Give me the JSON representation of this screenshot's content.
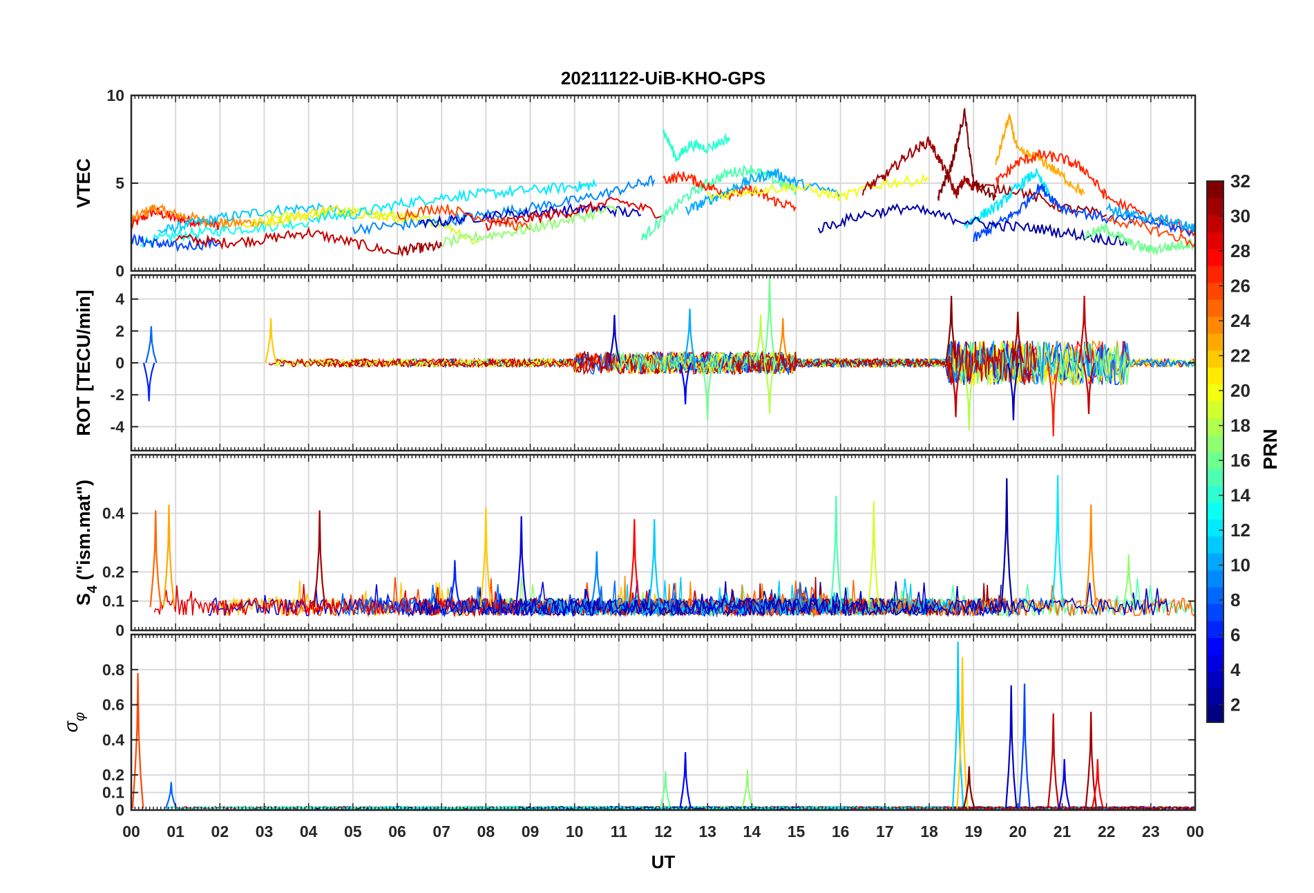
{
  "figure": {
    "title": "20211122-UiB-KHO-GPS",
    "xlabel": "UT"
  },
  "chart_data": [
    {
      "type": "line",
      "panel": "VTEC",
      "ylabel": "VTEC",
      "ylim": [
        0,
        10
      ],
      "yticks": [
        0,
        5,
        10
      ],
      "xlim": [
        0,
        24
      ],
      "grid": true,
      "series_note_visible": "multiple PRN traces colour-coded by PRN",
      "segments": [
        {
          "prn": 28,
          "x": [
            0.0,
            0.5,
            1.0,
            1.5,
            2.0
          ],
          "y": [
            2.6,
            3.4,
            3.0,
            2.8,
            2.6
          ]
        },
        {
          "prn": 24,
          "x": [
            0.0,
            0.5,
            1.0,
            1.6,
            2.2,
            3.0
          ],
          "y": [
            2.9,
            3.6,
            3.2,
            2.9,
            2.7,
            2.8
          ]
        },
        {
          "prn": 11,
          "x": [
            0.6,
            1.2,
            2.0,
            3.0,
            4.0,
            5.0
          ],
          "y": [
            2.2,
            2.6,
            3.0,
            3.4,
            3.6,
            3.3
          ]
        },
        {
          "prn": 13,
          "x": [
            0.2,
            1.0,
            2.0,
            3.0,
            4.0
          ],
          "y": [
            1.6,
            2.0,
            2.3,
            2.5,
            2.8
          ]
        },
        {
          "prn": 7,
          "x": [
            0.0,
            0.5,
            1.0,
            2.0
          ],
          "y": [
            1.8,
            1.6,
            1.4,
            1.6
          ]
        },
        {
          "prn": 30,
          "x": [
            1.0,
            2.0,
            3.0,
            4.0,
            5.0,
            6.0
          ],
          "y": [
            1.9,
            1.6,
            1.8,
            2.2,
            1.6,
            1.0
          ]
        },
        {
          "prn": 31,
          "x": [
            6.0,
            6.5,
            7.0
          ],
          "y": [
            1.1,
            1.3,
            1.4
          ]
        },
        {
          "prn": 19,
          "x": [
            3.0,
            4.0,
            5.0,
            6.0,
            7.0,
            7.8
          ],
          "y": [
            3.0,
            3.2,
            3.4,
            3.1,
            2.8,
            1.6
          ]
        },
        {
          "prn": 21,
          "x": [
            2.5,
            3.5,
            4.5,
            5.5,
            6.5
          ],
          "y": [
            2.6,
            3.0,
            3.5,
            3.2,
            2.9
          ]
        },
        {
          "prn": 12,
          "x": [
            4.0,
            5.0,
            6.0,
            7.0,
            8.0,
            9.0,
            10.0,
            10.5
          ],
          "y": [
            3.0,
            3.2,
            3.8,
            4.2,
            4.4,
            4.6,
            4.8,
            4.9
          ]
        },
        {
          "prn": 9,
          "x": [
            5.0,
            6.0,
            7.0,
            8.0,
            9.0,
            10.0,
            11.0,
            11.8
          ],
          "y": [
            2.4,
            2.6,
            2.8,
            3.2,
            3.6,
            4.0,
            4.6,
            5.2
          ]
        },
        {
          "prn": 3,
          "x": [
            6.5,
            7.5,
            8.5,
            9.5,
            10.5,
            11.5
          ],
          "y": [
            2.6,
            3.0,
            3.2,
            3.4,
            3.6,
            3.2
          ]
        },
        {
          "prn": 26,
          "x": [
            6.0,
            7.0,
            8.0,
            9.0
          ],
          "y": [
            3.2,
            3.6,
            3.0,
            2.4
          ]
        },
        {
          "prn": 17,
          "x": [
            7.0,
            8.0,
            9.0,
            10.0,
            11.0
          ],
          "y": [
            1.6,
            2.0,
            2.4,
            3.0,
            3.6
          ]
        },
        {
          "prn": 29,
          "x": [
            8.0,
            9.0,
            10.0,
            11.0,
            12.0
          ],
          "y": [
            2.6,
            3.0,
            3.4,
            4.0,
            3.2
          ]
        },
        {
          "prn": 14,
          "x": [
            12.0,
            12.3,
            12.6,
            13.0,
            13.5
          ],
          "y": [
            8.0,
            6.4,
            7.2,
            7.0,
            7.6
          ]
        },
        {
          "prn": 15,
          "x": [
            11.5,
            12.0,
            12.5,
            13.0,
            13.5,
            14.0,
            14.5,
            15.0
          ],
          "y": [
            1.8,
            3.0,
            4.2,
            5.0,
            5.6,
            5.8,
            5.2,
            4.6
          ]
        },
        {
          "prn": 27,
          "x": [
            12.0,
            12.5,
            13.0,
            13.5,
            14.0,
            14.5,
            15.0
          ],
          "y": [
            5.2,
            5.4,
            4.8,
            4.4,
            4.6,
            4.0,
            3.6
          ]
        },
        {
          "prn": 10,
          "x": [
            12.5,
            13.0,
            13.5,
            14.0,
            14.5,
            15.0,
            16.0
          ],
          "y": [
            3.4,
            4.0,
            4.6,
            5.2,
            5.6,
            5.0,
            4.4
          ]
        },
        {
          "prn": 20,
          "x": [
            13.0,
            14.0,
            15.0,
            16.0,
            17.0,
            18.0
          ],
          "y": [
            4.2,
            4.6,
            4.8,
            4.2,
            5.0,
            5.2
          ]
        },
        {
          "prn": 31,
          "x": [
            16.5,
            17.0,
            17.5,
            18.0,
            18.3,
            18.6,
            18.8,
            19.0,
            20.0,
            21.0,
            22.0
          ],
          "y": [
            4.6,
            5.4,
            6.6,
            7.4,
            6.0,
            4.4,
            5.2,
            4.8,
            4.6,
            3.6,
            3.2
          ]
        },
        {
          "prn": 32,
          "x": [
            18.2,
            18.5,
            18.8,
            19.0,
            19.5
          ],
          "y": [
            4.2,
            6.0,
            9.0,
            5.0,
            4.2
          ]
        },
        {
          "prn": 23,
          "x": [
            19.5,
            19.8,
            20.0,
            20.5,
            21.0,
            21.5
          ],
          "y": [
            6.0,
            8.8,
            6.8,
            6.4,
            5.4,
            4.4
          ]
        },
        {
          "prn": 27,
          "x": [
            19.5,
            20.0,
            20.5,
            21.0,
            21.5,
            22.0,
            23.0,
            24.0
          ],
          "y": [
            5.0,
            6.2,
            6.6,
            6.4,
            5.8,
            4.2,
            3.0,
            2.2
          ]
        },
        {
          "prn": 12,
          "x": [
            18.8,
            19.2,
            19.6,
            20.0,
            20.4,
            20.8
          ],
          "y": [
            2.6,
            3.2,
            3.8,
            4.8,
            5.6,
            4.0
          ]
        },
        {
          "prn": 7,
          "x": [
            19.0,
            19.5,
            20.0,
            20.5,
            21.0,
            22.0,
            23.0,
            24.0
          ],
          "y": [
            1.8,
            2.6,
            3.4,
            4.8,
            3.6,
            3.0,
            2.8,
            2.2
          ]
        },
        {
          "prn": 2,
          "x": [
            15.5,
            16.5,
            17.5,
            18.5,
            19.5,
            20.5,
            21.5,
            22.5
          ],
          "y": [
            2.4,
            3.2,
            3.6,
            3.0,
            2.6,
            2.4,
            2.0,
            1.6
          ]
        },
        {
          "prn": 16,
          "x": [
            21.5,
            22.0,
            22.5,
            23.0,
            23.5,
            24.0
          ],
          "y": [
            2.0,
            2.4,
            1.6,
            1.2,
            1.4,
            1.6
          ]
        },
        {
          "prn": 10,
          "x": [
            22.0,
            22.5,
            23.0,
            23.5,
            24.0
          ],
          "y": [
            3.6,
            3.2,
            3.0,
            2.8,
            2.4
          ]
        },
        {
          "prn": 26,
          "x": [
            22.0,
            23.0,
            24.0
          ],
          "y": [
            3.0,
            2.4,
            1.6
          ]
        }
      ]
    },
    {
      "type": "line",
      "panel": "ROT",
      "ylabel": "ROT [TECU/min]",
      "ylim": [
        -5.5,
        5.5
      ],
      "yticks": [
        -4,
        -2,
        0,
        2,
        4
      ],
      "xlim": [
        0,
        24
      ],
      "grid": true,
      "spikes": [
        {
          "prn": 6,
          "x": 0.4,
          "y": -2.4
        },
        {
          "prn": 8,
          "x": 0.45,
          "y": 2.3
        },
        {
          "prn": 22,
          "x": 3.15,
          "y": 2.8
        },
        {
          "prn": 3,
          "x": 10.9,
          "y": 3.0
        },
        {
          "prn": 5,
          "x": 12.5,
          "y": -2.6
        },
        {
          "prn": 10,
          "x": 12.6,
          "y": 3.4
        },
        {
          "prn": 16,
          "x": 13.0,
          "y": -3.6
        },
        {
          "prn": 18,
          "x": 14.2,
          "y": 3.0
        },
        {
          "prn": 16,
          "x": 14.4,
          "y": 5.4
        },
        {
          "prn": 18,
          "x": 14.4,
          "y": -3.2
        },
        {
          "prn": 24,
          "x": 14.7,
          "y": 2.8
        },
        {
          "prn": 32,
          "x": 18.5,
          "y": 4.2
        },
        {
          "prn": 30,
          "x": 18.6,
          "y": -3.4
        },
        {
          "prn": 18,
          "x": 18.9,
          "y": -4.2
        },
        {
          "prn": 3,
          "x": 19.9,
          "y": -3.6
        },
        {
          "prn": 31,
          "x": 20.0,
          "y": 3.2
        },
        {
          "prn": 27,
          "x": 20.8,
          "y": -4.6
        },
        {
          "prn": 30,
          "x": 21.5,
          "y": 4.2
        },
        {
          "prn": 30,
          "x": 21.6,
          "y": -3.2
        }
      ]
    },
    {
      "type": "line",
      "panel": "S4",
      "ylabel": "S",
      "ylabel_subscript": "4",
      "ylabel_suffix": " (\"ism.mat\")",
      "ylim": [
        0,
        0.6
      ],
      "yticks": [
        0,
        0.1,
        0.2,
        0.4
      ],
      "xlim": [
        0,
        24
      ],
      "grid": true,
      "spikes": [
        {
          "prn": 25,
          "x": 0.55,
          "y": 0.41
        },
        {
          "prn": 23,
          "x": 0.85,
          "y": 0.43
        },
        {
          "prn": 31,
          "x": 4.25,
          "y": 0.41
        },
        {
          "prn": 6,
          "x": 7.3,
          "y": 0.24
        },
        {
          "prn": 22,
          "x": 8.0,
          "y": 0.42
        },
        {
          "prn": 4,
          "x": 8.8,
          "y": 0.39
        },
        {
          "prn": 9,
          "x": 10.5,
          "y": 0.27
        },
        {
          "prn": 28,
          "x": 11.35,
          "y": 0.38
        },
        {
          "prn": 11,
          "x": 11.8,
          "y": 0.38
        },
        {
          "prn": 15,
          "x": 15.9,
          "y": 0.46
        },
        {
          "prn": 19,
          "x": 16.75,
          "y": 0.44
        },
        {
          "prn": 2,
          "x": 19.75,
          "y": 0.52
        },
        {
          "prn": 12,
          "x": 20.9,
          "y": 0.53
        },
        {
          "prn": 24,
          "x": 21.65,
          "y": 0.43
        },
        {
          "prn": 17,
          "x": 22.5,
          "y": 0.26
        }
      ]
    },
    {
      "type": "line",
      "panel": "sigma_phi",
      "ylabel": "σ",
      "ylabel_subscript": "φ",
      "ylim": [
        0,
        1
      ],
      "yticks": [
        0,
        0.1,
        0.2,
        0.4,
        0.6,
        0.8
      ],
      "xlim": [
        0,
        24
      ],
      "grid": true,
      "spikes": [
        {
          "prn": 26,
          "x": 0.15,
          "y": 0.78
        },
        {
          "prn": 8,
          "x": 0.9,
          "y": 0.16
        },
        {
          "prn": 16,
          "x": 12.05,
          "y": 0.22
        },
        {
          "prn": 5,
          "x": 12.5,
          "y": 0.33
        },
        {
          "prn": 17,
          "x": 13.9,
          "y": 0.23
        },
        {
          "prn": 11,
          "x": 18.65,
          "y": 0.96
        },
        {
          "prn": 22,
          "x": 18.75,
          "y": 0.87
        },
        {
          "prn": 32,
          "x": 18.9,
          "y": 0.25
        },
        {
          "prn": 3,
          "x": 19.85,
          "y": 0.71
        },
        {
          "prn": 7,
          "x": 20.15,
          "y": 0.72
        },
        {
          "prn": 30,
          "x": 20.8,
          "y": 0.55
        },
        {
          "prn": 4,
          "x": 21.05,
          "y": 0.29
        },
        {
          "prn": 31,
          "x": 21.65,
          "y": 0.56
        },
        {
          "prn": 28,
          "x": 21.8,
          "y": 0.29
        }
      ]
    }
  ],
  "x_ticks": [
    "00",
    "01",
    "02",
    "03",
    "04",
    "05",
    "06",
    "07",
    "08",
    "09",
    "10",
    "11",
    "12",
    "13",
    "14",
    "15",
    "16",
    "17",
    "18",
    "19",
    "20",
    "21",
    "22",
    "23",
    "00"
  ],
  "colorbar": {
    "label": "PRN",
    "range": [
      1,
      32
    ],
    "ticks": [
      2,
      4,
      6,
      8,
      10,
      12,
      14,
      16,
      18,
      20,
      22,
      24,
      26,
      28,
      30,
      32
    ],
    "colormap": "jet"
  }
}
